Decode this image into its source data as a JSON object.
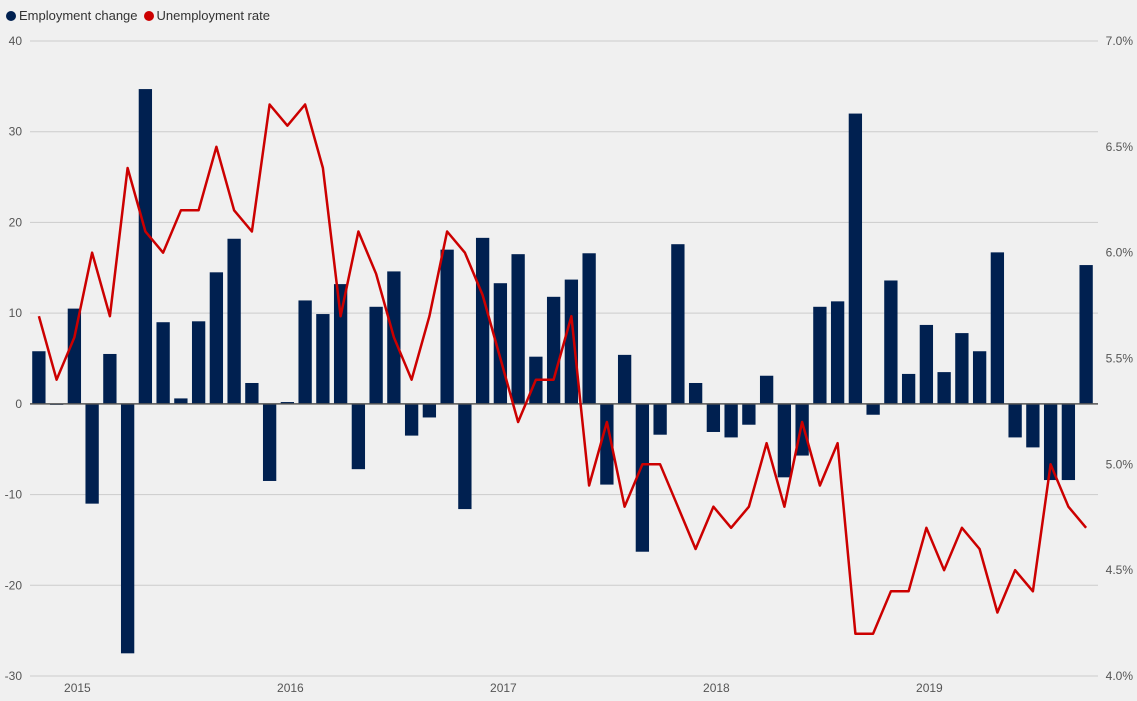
{
  "legend": {
    "employment_label": "Employment change",
    "unemployment_label": "Unemployment rate"
  },
  "colors": {
    "bar": "#002050",
    "line": "#cc0000",
    "grid": "#cccccc",
    "zero": "#555555"
  },
  "chart_data": {
    "type": "bar+line",
    "x_labels": [
      "2015",
      "2016",
      "2017",
      "2018",
      "2019"
    ],
    "x_label_months": [
      2,
      14,
      26,
      38,
      50
    ],
    "y_left": {
      "ticks": [
        "40",
        "30",
        "20",
        "10",
        "0",
        "-10",
        "-20",
        "-30"
      ],
      "min": -30,
      "max": 40
    },
    "y_right": {
      "ticks": [
        "7.0%",
        "6.5%",
        "6.0%",
        "5.5%",
        "5.0%",
        "4.5%",
        "4.0%"
      ],
      "min": 4.0,
      "max": 7.0
    },
    "series": [
      {
        "name": "Employment change",
        "type": "bar",
        "values": [
          5.8,
          -0.1,
          10.5,
          -11.0,
          5.5,
          -27.5,
          34.7,
          9.0,
          0.6,
          9.1,
          14.5,
          18.2,
          2.3,
          -8.5,
          0.2,
          11.4,
          9.9,
          13.2,
          -7.2,
          10.7,
          14.6,
          -3.5,
          -1.5,
          17.0,
          -11.6,
          18.3,
          13.3,
          16.5,
          5.2,
          11.8,
          13.7,
          16.6,
          -8.9,
          5.4,
          -16.3,
          -3.4,
          17.6,
          2.3,
          -3.1,
          -3.7,
          -2.3,
          3.1,
          -8.1,
          -5.7,
          10.7,
          11.3,
          32.0,
          -1.2,
          13.6,
          3.3,
          8.7,
          3.5,
          7.8,
          5.8,
          16.7,
          -3.7,
          -4.8,
          -8.4,
          -8.4,
          15.3
        ]
      },
      {
        "name": "Unemployment rate",
        "type": "line",
        "values": [
          5.7,
          5.4,
          5.6,
          6.0,
          5.7,
          6.4,
          6.1,
          6.0,
          6.2,
          6.2,
          6.5,
          6.2,
          6.1,
          6.7,
          6.6,
          6.7,
          6.4,
          5.7,
          6.1,
          5.9,
          5.6,
          5.4,
          5.7,
          6.1,
          6.0,
          5.8,
          5.5,
          5.2,
          5.4,
          5.4,
          5.7,
          4.9,
          5.2,
          4.8,
          5.0,
          5.0,
          4.8,
          4.6,
          4.8,
          4.7,
          4.8,
          5.1,
          4.8,
          5.2,
          4.9,
          5.1,
          4.2,
          4.2,
          4.4,
          4.4,
          4.7,
          4.5,
          4.7,
          4.6,
          4.3,
          4.5,
          4.4,
          5.0,
          4.8,
          4.7
        ]
      }
    ]
  }
}
